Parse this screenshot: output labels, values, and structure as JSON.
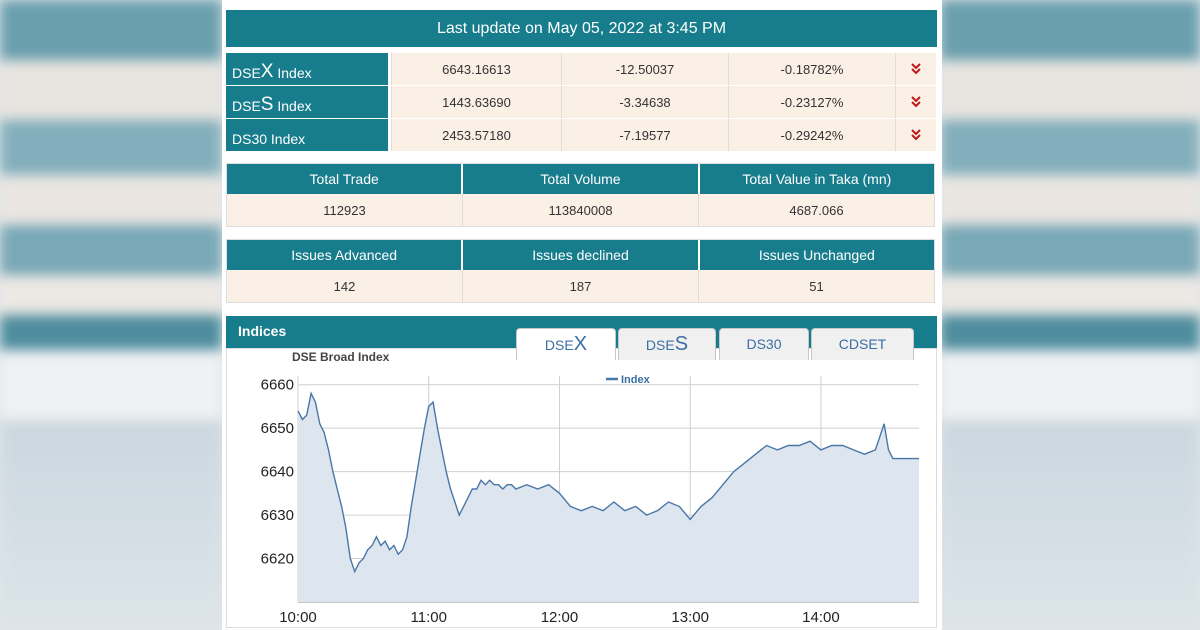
{
  "header": {
    "update_text": "Last update on May 05, 2022 at 3:45 PM"
  },
  "indices": [
    {
      "prefix": "DSE",
      "letter": "X",
      "suffix": " Index",
      "value": "6643.16613",
      "change": "-12.50037",
      "pct": "-0.18782%",
      "trend_icon": "double-chevron-down"
    },
    {
      "prefix": "DSE",
      "letter": "S",
      "suffix": " Index",
      "value": "1443.63690",
      "change": "-3.34638",
      "pct": "-0.23127%",
      "trend_icon": "double-chevron-down"
    },
    {
      "prefix": "DS30",
      "letter": "",
      "suffix": " Index",
      "value": "2453.57180",
      "change": "-7.19577",
      "pct": "-0.29242%",
      "trend_icon": "double-chevron-down"
    }
  ],
  "trade_stats": {
    "headers": [
      "Total Trade",
      "Total Volume",
      "Total Value in Taka (mn)"
    ],
    "values": [
      "112923",
      "113840008",
      "4687.066"
    ]
  },
  "issue_stats": {
    "headers": [
      "Issues Advanced",
      "Issues declined",
      "Issues Unchanged"
    ],
    "values": [
      "142",
      "187",
      "51"
    ]
  },
  "indices_section": {
    "title": "Indices",
    "tabs": [
      {
        "prefix": "DSE",
        "letter": "X",
        "active": true
      },
      {
        "prefix": "DSE",
        "letter": "S",
        "active": false
      },
      {
        "prefix": "DS30",
        "letter": "",
        "active": false
      },
      {
        "prefix": "CDSET",
        "letter": "",
        "active": false
      }
    ]
  },
  "colors": {
    "accent": "#177d8d",
    "cell_bg": "#fbf0e6",
    "down": "#c01818",
    "line": "#4a76a8",
    "area": "#dde5ee"
  },
  "chart_data": {
    "type": "area",
    "title": "DSE Broad Index",
    "legend": [
      "Index"
    ],
    "legend_position": "top-center",
    "x_ticks": [
      "10:00",
      "11:00",
      "12:00",
      "13:00",
      "14:00"
    ],
    "y_ticks": [
      6620,
      6630,
      6640,
      6650,
      6660
    ],
    "ylim": [
      6610,
      6662
    ],
    "xlim": [
      "10:00",
      "14:45"
    ],
    "grid": true,
    "series": [
      {
        "name": "Index",
        "x": [
          "10:00",
          "10:02",
          "10:04",
          "10:06",
          "10:08",
          "10:10",
          "10:12",
          "10:14",
          "10:16",
          "10:18",
          "10:20",
          "10:22",
          "10:24",
          "10:26",
          "10:28",
          "10:30",
          "10:32",
          "10:34",
          "10:36",
          "10:38",
          "10:40",
          "10:42",
          "10:44",
          "10:46",
          "10:48",
          "10:50",
          "10:52",
          "10:54",
          "10:56",
          "10:58",
          "11:00",
          "11:02",
          "11:04",
          "11:06",
          "11:08",
          "11:10",
          "11:12",
          "11:14",
          "11:16",
          "11:18",
          "11:20",
          "11:22",
          "11:24",
          "11:26",
          "11:28",
          "11:30",
          "11:32",
          "11:34",
          "11:36",
          "11:38",
          "11:40",
          "11:45",
          "11:50",
          "11:55",
          "12:00",
          "12:05",
          "12:10",
          "12:15",
          "12:20",
          "12:25",
          "12:30",
          "12:35",
          "12:40",
          "12:45",
          "12:50",
          "12:55",
          "13:00",
          "13:05",
          "13:10",
          "13:15",
          "13:20",
          "13:25",
          "13:30",
          "13:35",
          "13:40",
          "13:45",
          "13:50",
          "13:55",
          "14:00",
          "14:05",
          "14:10",
          "14:15",
          "14:20",
          "14:25",
          "14:27",
          "14:29",
          "14:31",
          "14:33",
          "14:45"
        ],
        "values": [
          6654,
          6652,
          6653,
          6658,
          6656,
          6651,
          6649,
          6645,
          6640,
          6636,
          6632,
          6627,
          6620,
          6617,
          6619,
          6620,
          6622,
          6623,
          6625,
          6623,
          6624,
          6622,
          6623,
          6621,
          6622,
          6625,
          6632,
          6638,
          6644,
          6650,
          6655,
          6656,
          6650,
          6645,
          6640,
          6636,
          6633,
          6630,
          6632,
          6634,
          6636,
          6636,
          6638,
          6637,
          6638,
          6637,
          6637,
          6636,
          6637,
          6637,
          6636,
          6637,
          6636,
          6637,
          6635,
          6632,
          6631,
          6632,
          6631,
          6633,
          6631,
          6632,
          6630,
          6631,
          6633,
          6632,
          6629,
          6632,
          6634,
          6637,
          6640,
          6642,
          6644,
          6646,
          6645,
          6646,
          6646,
          6647,
          6645,
          6646,
          6646,
          6645,
          6644,
          6645,
          6648,
          6651,
          6645,
          6643,
          6643
        ]
      }
    ]
  }
}
